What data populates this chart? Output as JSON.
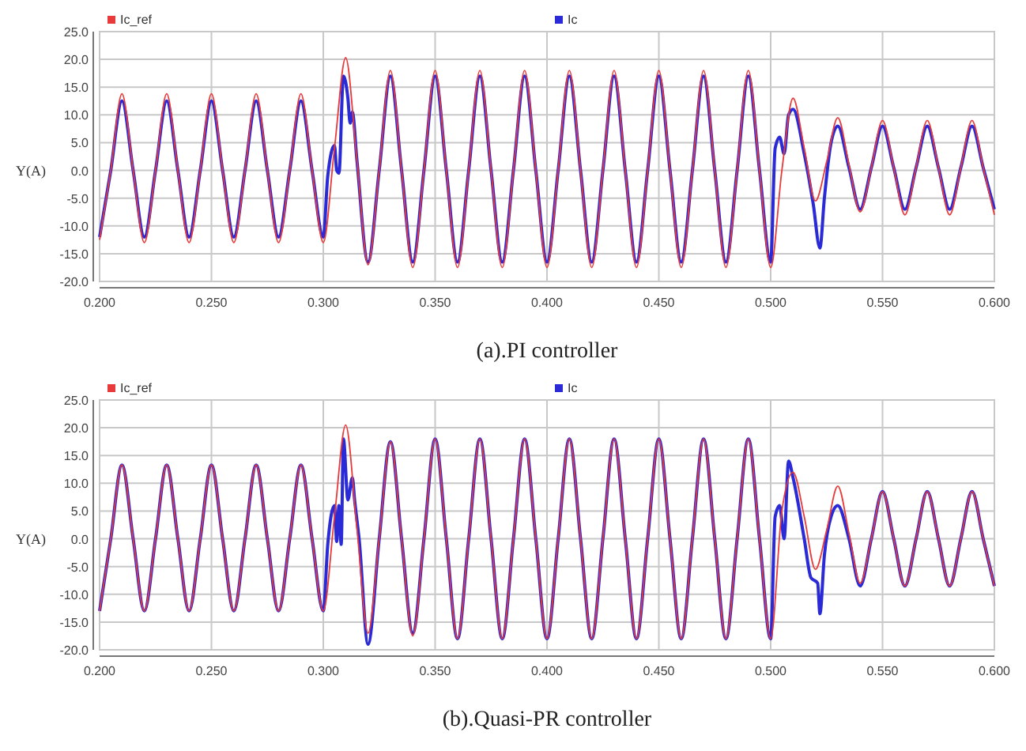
{
  "chart_data": [
    {
      "type": "line",
      "title": "(a).PI controller",
      "ylabel": "Y(A)",
      "legend": "top",
      "grid": true,
      "line_style": "solid",
      "xlim": [
        0.2,
        0.6
      ],
      "ylim": [
        -20,
        25
      ],
      "xticks": [
        {
          "value": 0.2,
          "label": "0.200"
        },
        {
          "value": 0.25,
          "label": "0.250"
        },
        {
          "value": 0.3,
          "label": "0.300"
        },
        {
          "value": 0.35,
          "label": "0.350"
        },
        {
          "value": 0.4,
          "label": "0.400"
        },
        {
          "value": 0.45,
          "label": "0.450"
        },
        {
          "value": 0.5,
          "label": "0.500"
        },
        {
          "value": 0.55,
          "label": "0.550"
        },
        {
          "value": 0.6,
          "label": "0.600"
        }
      ],
      "yticks": [
        {
          "value": -20,
          "label": "-20.0"
        },
        {
          "value": -15,
          "label": "-15.0"
        },
        {
          "value": -10,
          "label": "-10.0"
        },
        {
          "value": -5,
          "label": "-5.0"
        },
        {
          "value": 0,
          "label": "0.0"
        },
        {
          "value": 5,
          "label": "5.0"
        },
        {
          "value": 10,
          "label": "10.0"
        },
        {
          "value": 15,
          "label": "15.0"
        },
        {
          "value": 20,
          "label": "20.0"
        },
        {
          "value": 25,
          "label": "25.0"
        }
      ],
      "series": [
        {
          "name": "Ic_ref",
          "color": "#e83a3a",
          "x": [
            0.2,
            0.205,
            0.21,
            0.215,
            0.22,
            0.225,
            0.23,
            0.235,
            0.24,
            0.245,
            0.25,
            0.255,
            0.26,
            0.265,
            0.27,
            0.275,
            0.28,
            0.285,
            0.29,
            0.295,
            0.3,
            0.305,
            0.31,
            0.315,
            0.32,
            0.325,
            0.33,
            0.335,
            0.34,
            0.345,
            0.35,
            0.355,
            0.36,
            0.365,
            0.37,
            0.375,
            0.38,
            0.385,
            0.39,
            0.395,
            0.4,
            0.405,
            0.41,
            0.415,
            0.42,
            0.425,
            0.43,
            0.435,
            0.44,
            0.445,
            0.45,
            0.455,
            0.46,
            0.465,
            0.47,
            0.475,
            0.48,
            0.485,
            0.49,
            0.495,
            0.5,
            0.505,
            0.51,
            0.515,
            0.52,
            0.525,
            0.53,
            0.535,
            0.54,
            0.545,
            0.55,
            0.555,
            0.56,
            0.565,
            0.57,
            0.575,
            0.58,
            0.585,
            0.59,
            0.595,
            0.6
          ],
          "values": [
            -12.5,
            0,
            13.8,
            0,
            -13,
            0,
            13.8,
            0,
            -13,
            0,
            13.8,
            0,
            -13,
            0,
            13.8,
            0,
            -13,
            0,
            13.8,
            0,
            -13,
            4,
            20.3,
            2,
            -17,
            0,
            18,
            0,
            -17.5,
            0,
            18,
            0,
            -17.5,
            0,
            18,
            0,
            -17.5,
            0,
            18,
            0,
            -17.5,
            0,
            18,
            0,
            -17.5,
            0,
            18,
            0,
            -17.5,
            0,
            18,
            0,
            -17.5,
            0,
            18,
            0,
            -17.5,
            0,
            18,
            0,
            -17.5,
            0,
            13,
            4,
            -5.5,
            1.5,
            9.5,
            1,
            -7.5,
            0.5,
            9,
            0.5,
            -8,
            0.5,
            9,
            0.5,
            -8,
            0.5,
            9,
            0.5,
            -8
          ]
        },
        {
          "name": "Ic",
          "color": "#2a2ad6",
          "x": [
            0.2,
            0.205,
            0.21,
            0.215,
            0.22,
            0.225,
            0.23,
            0.235,
            0.24,
            0.245,
            0.25,
            0.255,
            0.26,
            0.265,
            0.27,
            0.275,
            0.28,
            0.285,
            0.29,
            0.295,
            0.3,
            0.302,
            0.305,
            0.306,
            0.307,
            0.309,
            0.311,
            0.312,
            0.313,
            0.315,
            0.32,
            0.325,
            0.33,
            0.335,
            0.34,
            0.345,
            0.35,
            0.355,
            0.36,
            0.365,
            0.37,
            0.375,
            0.38,
            0.385,
            0.39,
            0.395,
            0.4,
            0.405,
            0.41,
            0.415,
            0.42,
            0.425,
            0.43,
            0.435,
            0.44,
            0.445,
            0.45,
            0.455,
            0.46,
            0.465,
            0.47,
            0.475,
            0.48,
            0.485,
            0.49,
            0.495,
            0.5,
            0.502,
            0.504,
            0.506,
            0.508,
            0.51,
            0.515,
            0.519,
            0.522,
            0.524,
            0.527,
            0.53,
            0.535,
            0.54,
            0.545,
            0.55,
            0.555,
            0.56,
            0.565,
            0.57,
            0.575,
            0.58,
            0.585,
            0.59,
            0.595,
            0.6
          ],
          "values": [
            -12,
            0,
            12.5,
            0,
            -12,
            0,
            12.5,
            0,
            -12,
            0,
            12.5,
            0,
            -12,
            0,
            12.5,
            0,
            -12,
            0,
            12.5,
            0,
            -12,
            -1,
            4.5,
            0,
            -0.5,
            17,
            13,
            8.5,
            10.5,
            2,
            -16.5,
            0,
            17,
            0,
            -16.5,
            0,
            17,
            0,
            -16.5,
            0,
            17,
            0,
            -16.5,
            0,
            17,
            0,
            -16.5,
            0,
            17,
            0,
            -16.5,
            0,
            17,
            0,
            -16.5,
            0,
            17,
            0,
            -16.5,
            0,
            17,
            0,
            -16.5,
            0,
            17,
            0,
            -16.5,
            4,
            6,
            3,
            10,
            11,
            3,
            -6,
            -14,
            -5,
            5,
            8,
            0.5,
            -7,
            0.5,
            8,
            0.5,
            -7,
            0.5,
            8,
            0.5,
            -7,
            0.5,
            8,
            0.5,
            -7
          ]
        }
      ]
    },
    {
      "type": "line",
      "title": "(b).Quasi-PR controller",
      "ylabel": "Y(A)",
      "legend": "top",
      "grid": true,
      "line_style": "solid",
      "xlim": [
        0.2,
        0.6
      ],
      "ylim": [
        -20,
        25
      ],
      "xticks": [
        {
          "value": 0.2,
          "label": "0.200"
        },
        {
          "value": 0.25,
          "label": "0.250"
        },
        {
          "value": 0.3,
          "label": "0.300"
        },
        {
          "value": 0.35,
          "label": "0.350"
        },
        {
          "value": 0.4,
          "label": "0.400"
        },
        {
          "value": 0.45,
          "label": "0.450"
        },
        {
          "value": 0.5,
          "label": "0.500"
        },
        {
          "value": 0.55,
          "label": "0.550"
        },
        {
          "value": 0.6,
          "label": "0.600"
        }
      ],
      "yticks": [
        {
          "value": -20,
          "label": "-20.0"
        },
        {
          "value": -15,
          "label": "-15.0"
        },
        {
          "value": -10,
          "label": "-10.0"
        },
        {
          "value": -5,
          "label": "-5.0"
        },
        {
          "value": 0,
          "label": "0.0"
        },
        {
          "value": 5,
          "label": "5.0"
        },
        {
          "value": 10,
          "label": "10.0"
        },
        {
          "value": 15,
          "label": "15.0"
        },
        {
          "value": 20,
          "label": "20.0"
        },
        {
          "value": 25,
          "label": "25.0"
        }
      ],
      "series": [
        {
          "name": "Ic_ref",
          "color": "#e83a3a",
          "x": [
            0.2,
            0.205,
            0.21,
            0.215,
            0.22,
            0.225,
            0.23,
            0.235,
            0.24,
            0.245,
            0.25,
            0.255,
            0.26,
            0.265,
            0.27,
            0.275,
            0.28,
            0.285,
            0.29,
            0.295,
            0.3,
            0.305,
            0.31,
            0.315,
            0.32,
            0.325,
            0.33,
            0.335,
            0.34,
            0.345,
            0.35,
            0.355,
            0.36,
            0.365,
            0.37,
            0.375,
            0.38,
            0.385,
            0.39,
            0.395,
            0.4,
            0.405,
            0.41,
            0.415,
            0.42,
            0.425,
            0.43,
            0.435,
            0.44,
            0.445,
            0.45,
            0.455,
            0.46,
            0.465,
            0.47,
            0.475,
            0.48,
            0.485,
            0.49,
            0.495,
            0.5,
            0.505,
            0.51,
            0.515,
            0.52,
            0.525,
            0.53,
            0.535,
            0.54,
            0.545,
            0.55,
            0.555,
            0.56,
            0.565,
            0.57,
            0.575,
            0.58,
            0.585,
            0.59,
            0.595,
            0.6
          ],
          "values": [
            -13,
            0,
            13.3,
            0,
            -13,
            0,
            13.3,
            0,
            -13,
            0,
            13.3,
            0,
            -13,
            0,
            13.3,
            0,
            -13,
            0,
            13.3,
            0,
            -13,
            4,
            20.5,
            2,
            -17,
            0,
            17.5,
            0,
            -17.5,
            0,
            18,
            0,
            -18,
            0,
            18,
            0,
            -18,
            0,
            18,
            0,
            -18,
            0,
            18,
            0,
            -18,
            0,
            18,
            0,
            -18,
            0,
            18,
            0,
            -18,
            0,
            18,
            0,
            -18,
            0,
            18,
            0,
            -18,
            5,
            12,
            4,
            -5.5,
            1.5,
            9.5,
            1,
            -8,
            0,
            8.5,
            0,
            -8.5,
            0,
            8.5,
            0,
            -8.5,
            0,
            8.5,
            0,
            -8.5
          ]
        },
        {
          "name": "Ic",
          "color": "#2a2ad6",
          "x": [
            0.2,
            0.205,
            0.21,
            0.215,
            0.22,
            0.225,
            0.23,
            0.235,
            0.24,
            0.245,
            0.25,
            0.255,
            0.26,
            0.265,
            0.27,
            0.275,
            0.28,
            0.285,
            0.29,
            0.295,
            0.3,
            0.302,
            0.305,
            0.306,
            0.307,
            0.308,
            0.309,
            0.311,
            0.313,
            0.314,
            0.316,
            0.32,
            0.325,
            0.33,
            0.335,
            0.34,
            0.345,
            0.35,
            0.355,
            0.36,
            0.365,
            0.37,
            0.375,
            0.38,
            0.385,
            0.39,
            0.395,
            0.4,
            0.405,
            0.41,
            0.415,
            0.42,
            0.425,
            0.43,
            0.435,
            0.44,
            0.445,
            0.45,
            0.455,
            0.46,
            0.465,
            0.47,
            0.475,
            0.48,
            0.485,
            0.49,
            0.495,
            0.5,
            0.502,
            0.504,
            0.506,
            0.508,
            0.51,
            0.515,
            0.518,
            0.521,
            0.522,
            0.524,
            0.527,
            0.53,
            0.535,
            0.54,
            0.545,
            0.55,
            0.555,
            0.56,
            0.565,
            0.57,
            0.575,
            0.58,
            0.585,
            0.59,
            0.595,
            0.6
          ],
          "values": [
            -13,
            0,
            13.3,
            0,
            -13,
            0,
            13.3,
            0,
            -13,
            0,
            13.3,
            0,
            -13,
            0,
            13.3,
            0,
            -13,
            0,
            13.3,
            0,
            -13,
            -1,
            6,
            -0.5,
            6,
            -1,
            18,
            7,
            11,
            7,
            0,
            -19,
            0,
            17.5,
            0,
            -17,
            0,
            18,
            0,
            -18,
            0,
            18,
            0,
            -18,
            0,
            18,
            0,
            -18,
            0,
            18,
            0,
            -18,
            0,
            18,
            0,
            -18,
            0,
            18,
            0,
            -18,
            0,
            18,
            0,
            -18,
            0,
            18,
            0,
            -18,
            4,
            6,
            0,
            14,
            11,
            0,
            -7,
            -8,
            -13.5,
            -3,
            4,
            6,
            0,
            -8.5,
            0,
            8.5,
            0,
            -8.5,
            0,
            8.5,
            0,
            -8.5,
            0,
            8.5,
            0,
            -8.5
          ]
        }
      ]
    }
  ]
}
